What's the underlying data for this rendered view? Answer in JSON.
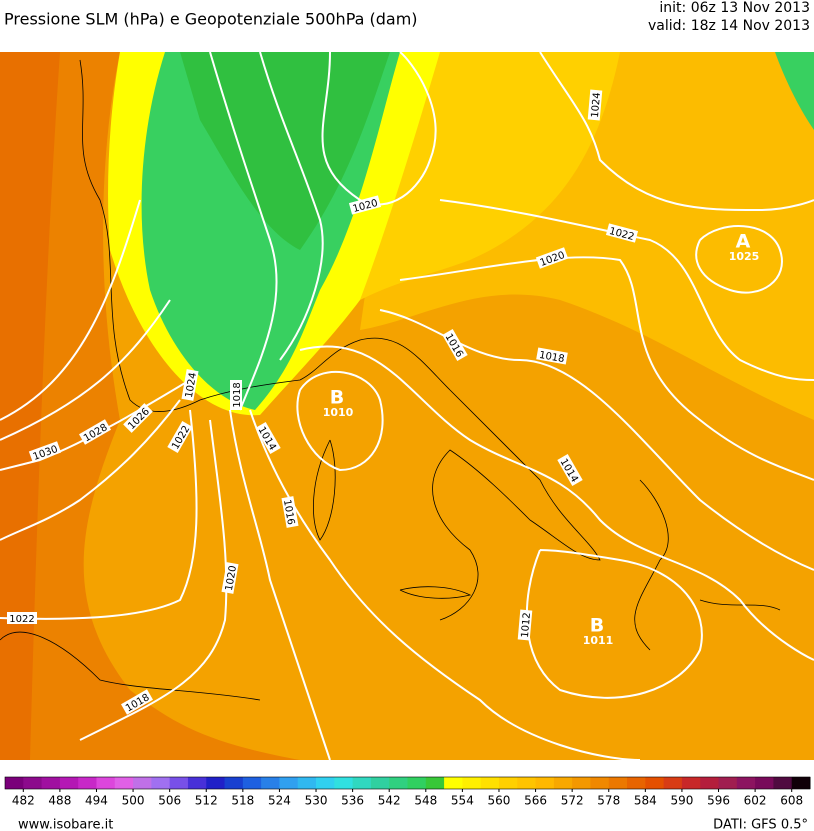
{
  "header": {
    "title": "Pressione SLM (hPa) e Geopotenziale 500hPa (dam)",
    "init": "init: 06z 13 Nov 2013",
    "valid": "valid: 18z 14 Nov 2013"
  },
  "isobar_labels": [
    "1020",
    "1024",
    "1022",
    "1020",
    "1016",
    "1018",
    "1014",
    "1012",
    "1016",
    "1014",
    "1020",
    "1018",
    "1022",
    "1024",
    "1026",
    "1028",
    "1030",
    "1022",
    "1018"
  ],
  "pressure_centers": [
    {
      "letter": "B",
      "value": "1010"
    },
    {
      "letter": "A",
      "value": "1025"
    },
    {
      "letter": "B",
      "value": "1011"
    }
  ],
  "colorbar": {
    "lim": [
      479,
      611
    ],
    "ticks": [
      482,
      488,
      494,
      500,
      506,
      512,
      518,
      524,
      530,
      536,
      542,
      548,
      554,
      560,
      566,
      572,
      578,
      584,
      590,
      596,
      602,
      608
    ],
    "colors": [
      "#7a007a",
      "#8c0a8c",
      "#a010a0",
      "#b418b4",
      "#c828c8",
      "#dc46dc",
      "#e060e6",
      "#c070e8",
      "#a070f0",
      "#7850e8",
      "#4830d8",
      "#2020c8",
      "#1840d0",
      "#1e60e0",
      "#2880e8",
      "#30a0f0",
      "#30b8f0",
      "#30d0f0",
      "#30e0e0",
      "#30d8c0",
      "#30d0a0",
      "#30d080",
      "#30d060",
      "#38c838",
      "#ffff00",
      "#fff000",
      "#ffe000",
      "#ffd000",
      "#ffc400",
      "#ffb800",
      "#f8a800",
      "#f49800",
      "#f08800",
      "#ec7800",
      "#e86400",
      "#e45000",
      "#d83c14",
      "#c82828",
      "#b41e3c",
      "#a01e50",
      "#8c1460",
      "#780a5a",
      "#500a40",
      "#100008"
    ]
  },
  "footer": {
    "source": "www.isobare.it",
    "data": "DATI: GFS 0.5°"
  }
}
